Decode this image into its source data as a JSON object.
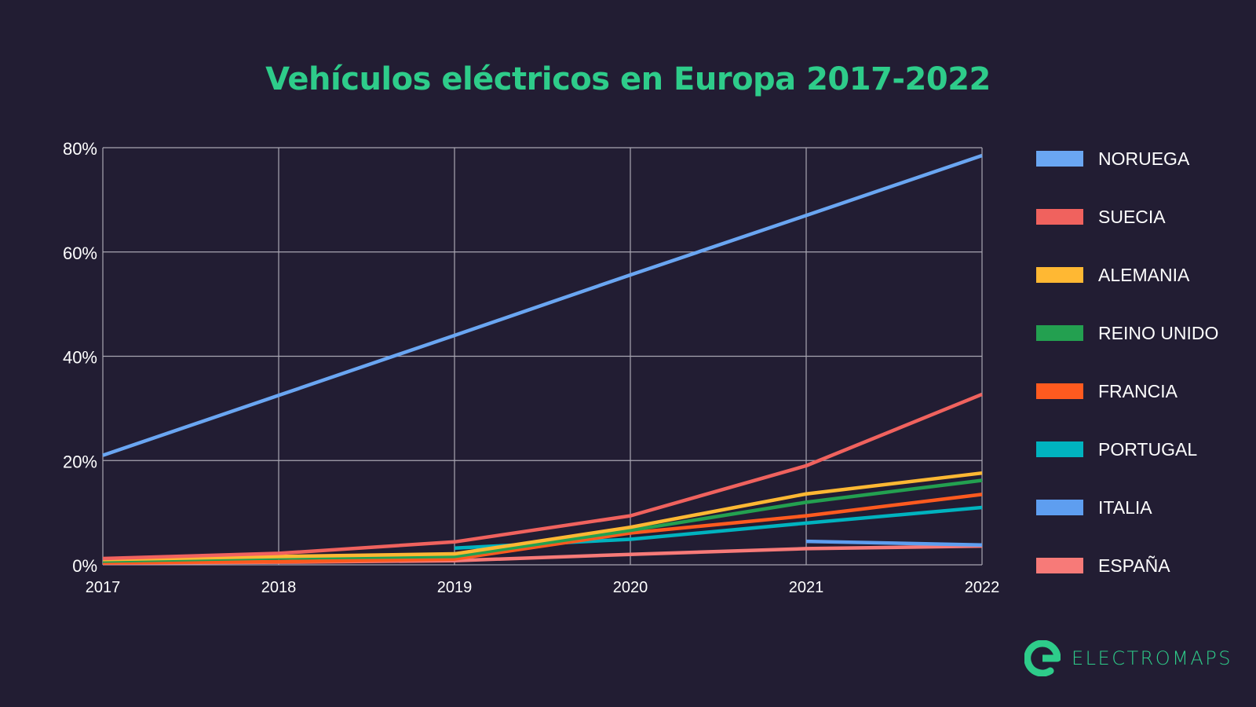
{
  "chart_data": {
    "type": "line",
    "title": "Vehículos eléctricos en Europa 2017-2022",
    "xlabel": "",
    "ylabel": "",
    "x": [
      "2017",
      "2018",
      "2019",
      "2020",
      "2021",
      "2022"
    ],
    "y_ticks": [
      "0%",
      "20%",
      "40%",
      "60%",
      "80%"
    ],
    "ylim": [
      0,
      80
    ],
    "grid": true,
    "legend_placement": "right",
    "series": [
      {
        "name": "NORUEGA",
        "color": "#6aa6f2",
        "values": [
          21,
          32.5,
          44,
          55.6,
          67,
          78.5
        ]
      },
      {
        "name": "SUECIA",
        "color": "#f0625e",
        "values": [
          1.2,
          2.2,
          4.4,
          9.4,
          19,
          32.7
        ]
      },
      {
        "name": "ALEMANIA",
        "color": "#ffb833",
        "values": [
          1.0,
          1.6,
          2.1,
          7.2,
          13.6,
          17.6
        ]
      },
      {
        "name": "REINO UNIDO",
        "color": "#23a050",
        "values": [
          0.7,
          1.3,
          1.6,
          6.6,
          12,
          16.2
        ]
      },
      {
        "name": "FRANCIA",
        "color": "#ff5a1f",
        "values": [
          0.4,
          0.6,
          1.1,
          6.1,
          9.4,
          13.5
        ]
      },
      {
        "name": "PORTUGAL",
        "color": "#00b3bf",
        "values": [
          null,
          null,
          3.2,
          4.9,
          8,
          11
        ]
      },
      {
        "name": "ITALIA",
        "color": "#5e9ef0",
        "values": [
          null,
          null,
          null,
          null,
          4.5,
          3.8
        ]
      },
      {
        "name": "ESPAÑA",
        "color": "#f77a78",
        "values": [
          0.3,
          0.5,
          0.8,
          2,
          3.1,
          3.6
        ]
      }
    ]
  },
  "brand": {
    "name": "ELECTROMAPS",
    "color": "#2ecc8a"
  },
  "colors": {
    "background": "#221d33",
    "grid": "#a9a6b2",
    "text": "#ffffff"
  }
}
